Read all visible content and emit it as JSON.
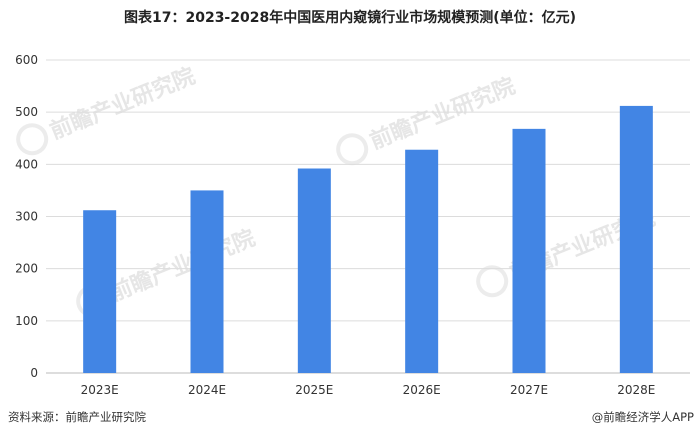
{
  "title": "图表17：2023-2028年中国医用内窥镜行业市场规模预测(单位：亿元)",
  "source_text": "资料来源：前瞻产业研究院",
  "brand_text": "@前瞻经济学人APP",
  "colors": {
    "bar": "#4285e4",
    "grid": "#dcdcdc",
    "axis": "#bbbbbb"
  },
  "chart_data": {
    "type": "bar",
    "title": "图表17：2023-2028年中国医用内窥镜行业市场规模预测(单位：亿元)",
    "categories": [
      "2023E",
      "2024E",
      "2025E",
      "2026E",
      "2027E",
      "2028E"
    ],
    "values": [
      312,
      350,
      392,
      428,
      468,
      512
    ],
    "xlabel": "",
    "ylabel": "",
    "ylim": [
      0,
      600
    ],
    "yticks": [
      0,
      100,
      200,
      300,
      400,
      500,
      600
    ],
    "grid": true,
    "legend": "none"
  }
}
